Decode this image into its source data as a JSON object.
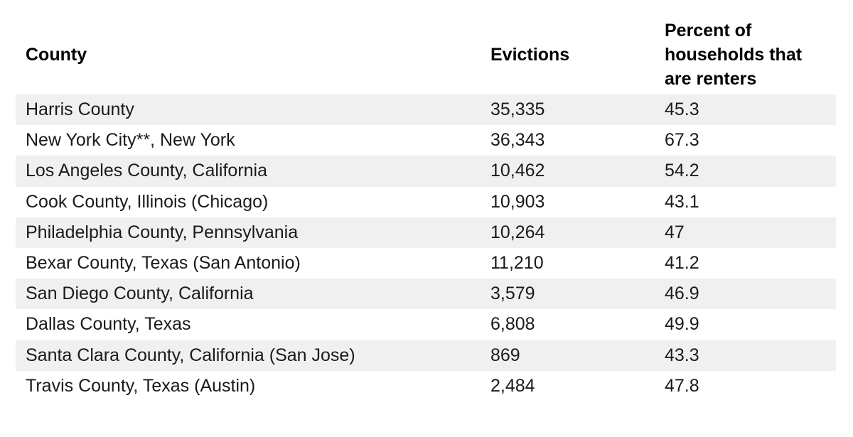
{
  "colors": {
    "row_band": "#f0f0f1",
    "text": "#1a1a1a",
    "header_text": "#000000",
    "background": "#ffffff"
  },
  "table": {
    "headers": {
      "county": "County",
      "evictions": "Evictions",
      "renters": "Percent of households that are renters"
    },
    "rows": [
      {
        "county": "Harris County",
        "evictions": "35,335",
        "renters_pct": "45.3"
      },
      {
        "county": "New York City**, New York",
        "evictions": "36,343",
        "renters_pct": "67.3"
      },
      {
        "county": "Los Angeles County, California",
        "evictions": "10,462",
        "renters_pct": "54.2"
      },
      {
        "county": "Cook County, Illinois (Chicago)",
        "evictions": "10,903",
        "renters_pct": "43.1"
      },
      {
        "county": "Philadelphia County, Pennsylvania",
        "evictions": "10,264",
        "renters_pct": "47"
      },
      {
        "county": "Bexar County, Texas (San Antonio)",
        "evictions": "11,210",
        "renters_pct": "41.2"
      },
      {
        "county": "San Diego County, California",
        "evictions": "3,579",
        "renters_pct": "46.9"
      },
      {
        "county": "Dallas County, Texas",
        "evictions": "6,808",
        "renters_pct": "49.9"
      },
      {
        "county": "Santa Clara County, California (San Jose)",
        "evictions": "869",
        "renters_pct": "43.3"
      },
      {
        "county": "Travis County, Texas (Austin)",
        "evictions": "2,484",
        "renters_pct": "47.8"
      }
    ]
  },
  "chart_data": {
    "type": "table",
    "title": "",
    "columns": [
      "County",
      "Evictions",
      "Percent of households that are renters"
    ],
    "rows": [
      [
        "Harris County",
        35335,
        45.3
      ],
      [
        "New York City**, New York",
        36343,
        67.3
      ],
      [
        "Los Angeles County, California",
        10462,
        54.2
      ],
      [
        "Cook County, Illinois (Chicago)",
        10903,
        43.1
      ],
      [
        "Philadelphia County, Pennsylvania",
        10264,
        47
      ],
      [
        "Bexar County, Texas (San Antonio)",
        11210,
        41.2
      ],
      [
        "San Diego County, California",
        3579,
        46.9
      ],
      [
        "Dallas County, Texas",
        6808,
        49.9
      ],
      [
        "Santa Clara County, California (San Jose)",
        869,
        43.3
      ],
      [
        "Travis County, Texas (Austin)",
        2484,
        47.8
      ]
    ],
    "layout": {
      "zebra_striping": true,
      "striped_rows": "odd (1st, 3rd, 5th, 7th, 9th)",
      "grid": false
    }
  }
}
